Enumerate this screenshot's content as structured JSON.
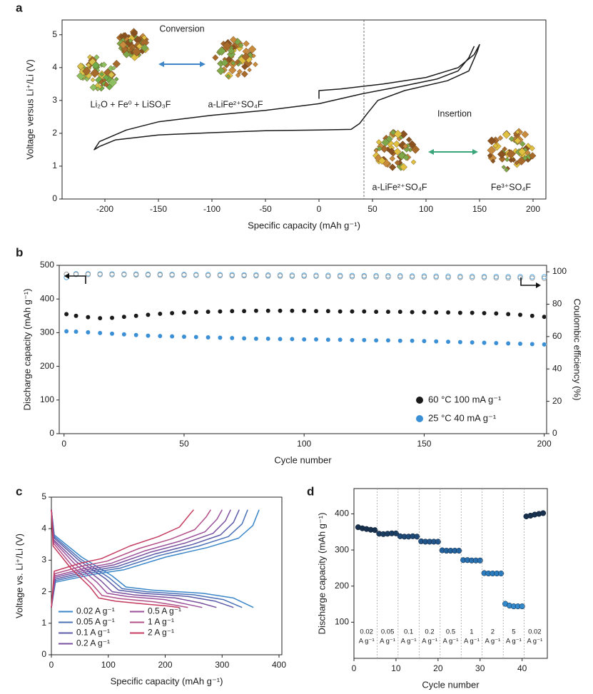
{
  "chart_data": [
    {
      "panel_label": "a",
      "type": "line",
      "xlabel": "Specific capacity (mAh g⁻¹)",
      "ylabel": "Voltage versus Li⁺/Li (V)",
      "xlim": [
        -240,
        212
      ],
      "ylim": [
        0,
        5.45
      ],
      "xticks": [
        -200,
        -150,
        -100,
        -50,
        0,
        50,
        100,
        150,
        200
      ],
      "yticks": [
        0,
        1,
        2,
        3,
        4,
        5
      ],
      "ref_line_x": 42,
      "series": [
        {
          "color": "#1a1a1a",
          "x": [
            0,
            0,
            20,
            60,
            100,
            130,
            145,
            150,
            148,
            140,
            120,
            80,
            55,
            45,
            38,
            30,
            0,
            -50,
            -100,
            -150,
            -190,
            -205,
            -210,
            -205,
            -180,
            -150,
            -100,
            -50,
            0,
            40,
            80,
            110,
            130,
            140,
            145
          ],
          "values": [
            3.05,
            3.3,
            3.35,
            3.5,
            3.7,
            4.0,
            4.4,
            4.7,
            4.5,
            3.9,
            3.6,
            3.3,
            3.0,
            2.6,
            2.3,
            2.12,
            2.1,
            2.08,
            2.02,
            1.95,
            1.8,
            1.6,
            1.5,
            1.75,
            2.1,
            2.35,
            2.55,
            2.7,
            2.9,
            3.2,
            3.45,
            3.65,
            3.9,
            4.3,
            4.65
          ]
        }
      ],
      "annotations": [
        "Conversion",
        "Li₂O + Fe⁰ + LiSO₃F",
        "a-LiFe²⁺SO₄F",
        "Insertion",
        "a-LiFe²⁺SO₄F",
        "Fe³⁺SO₄F"
      ]
    },
    {
      "panel_label": "b",
      "type": "scatter",
      "xlabel": "Cycle number",
      "ylabel": "Discharge capacity (mAh g⁻¹)",
      "y2label": "Coulombic efficiency (%)",
      "xlim": [
        -2,
        201
      ],
      "ylim": [
        0,
        500
      ],
      "y2lim": [
        0,
        104
      ],
      "xticks": [
        0,
        50,
        100,
        150,
        200
      ],
      "yticks": [
        0,
        100,
        200,
        300,
        400,
        500
      ],
      "y2ticks": [
        0,
        20,
        40,
        60,
        80,
        100
      ],
      "legend": "lower right",
      "x": [
        1,
        5,
        10,
        15,
        20,
        25,
        30,
        35,
        40,
        45,
        50,
        55,
        60,
        65,
        70,
        75,
        80,
        85,
        90,
        95,
        100,
        105,
        110,
        115,
        120,
        125,
        130,
        135,
        140,
        145,
        150,
        155,
        160,
        165,
        170,
        175,
        180,
        185,
        190,
        195,
        200
      ],
      "series": [
        {
          "name": "60 °C 100 mA g⁻¹",
          "color": "#1a1a1a",
          "marker": "filled",
          "values": [
            355,
            350,
            346,
            343,
            344,
            347,
            350,
            353,
            356,
            358,
            360,
            361,
            362,
            363,
            364,
            364,
            365,
            365,
            365,
            365,
            365,
            364,
            364,
            363,
            363,
            363,
            362,
            362,
            362,
            361,
            361,
            360,
            360,
            359,
            359,
            358,
            357,
            355,
            353,
            350,
            347
          ]
        },
        {
          "name": "25 °C 40 mA g⁻¹",
          "color": "#3b8fd4",
          "marker": "filled",
          "values": [
            304,
            303,
            301,
            299,
            297,
            295,
            293,
            291,
            290,
            289,
            288,
            287,
            286,
            285,
            284,
            283,
            282,
            282,
            281,
            281,
            280,
            280,
            279,
            279,
            278,
            278,
            277,
            277,
            276,
            276,
            275,
            274,
            273,
            272,
            271,
            270,
            269,
            268,
            267,
            266,
            265
          ]
        },
        {
          "color": "#5aaee8",
          "marker": "open",
          "axis": "y2",
          "values": [
            96.5,
            98.8,
            98.8,
            98.7,
            98.7,
            98.6,
            98.6,
            98.5,
            98.5,
            98.4,
            98.4,
            98.3,
            98.3,
            98.2,
            98.2,
            98.1,
            98.1,
            98.0,
            98.0,
            97.9,
            97.9,
            97.8,
            97.8,
            97.7,
            97.7,
            97.6,
            97.6,
            97.5,
            97.5,
            97.4,
            97.4,
            97.3,
            97.3,
            97.2,
            97.2,
            97.1,
            97.1,
            97.0,
            97.0,
            96.9,
            96.9
          ]
        },
        {
          "color": "#9a9a9a",
          "marker": "open",
          "axis": "y2",
          "values": [
            98.5,
            98.4,
            98.4,
            98.3,
            98.2,
            98.2,
            98.1,
            98.0,
            98.0,
            97.9,
            97.9,
            97.8,
            97.7,
            97.7,
            97.6,
            97.6,
            97.5,
            97.4,
            97.4,
            97.3,
            97.3,
            97.2,
            97.1,
            97.1,
            97.0,
            97.0,
            96.9,
            96.8,
            96.8,
            96.7,
            96.7,
            96.6,
            96.5,
            96.5,
            96.4,
            96.4,
            96.3,
            96.2,
            96.2,
            96.1,
            96.0
          ]
        }
      ]
    },
    {
      "panel_label": "c",
      "type": "line",
      "xlabel": "Specific capacity (mAh g⁻¹)",
      "ylabel": "Voltage vs. Li⁺/Li (V)",
      "xlim": [
        0,
        405
      ],
      "ylim": [
        0,
        5
      ],
      "xticks": [
        0,
        100,
        200,
        300,
        400
      ],
      "yticks": [
        0,
        1,
        2,
        3,
        4,
        5
      ],
      "legend": "lower left",
      "series": [
        {
          "name": "0.02 A g⁻¹",
          "color": "#3a86c8",
          "discharge": {
            "x": [
              0,
              5,
              53,
              107,
              131,
              178,
              266,
              320,
              355
            ],
            "values": [
              4.6,
              3.8,
              3.1,
              2.5,
              2.15,
              2.05,
              1.95,
              1.8,
              1.5
            ]
          },
          "charge": {
            "x": [
              0,
              7,
              73,
              128,
              201,
              274,
              329,
              354,
              365
            ],
            "values": [
              1.5,
              2.3,
              2.55,
              2.7,
              3.1,
              3.4,
              3.7,
              4.1,
              4.6
            ]
          }
        },
        {
          "name": "0.05 A g⁻¹",
          "color": "#4a70b6",
          "discharge": {
            "x": [
              0,
              5,
              50,
              101,
              124,
              168,
              251,
              302,
              335
            ],
            "values": [
              4.6,
              3.75,
              3.05,
              2.45,
              2.1,
              2.0,
              1.9,
              1.75,
              1.5
            ]
          },
          "charge": {
            "x": [
              0,
              7,
              69,
              121,
              190,
              259,
              311,
              335,
              345
            ],
            "values": [
              1.5,
              2.35,
              2.6,
              2.75,
              3.15,
              3.45,
              3.75,
              4.15,
              4.6
            ]
          }
        },
        {
          "name": "0.1 A g⁻¹",
          "color": "#5a5aa8",
          "discharge": {
            "x": [
              0,
              5,
              48,
              96,
              118,
              160,
              240,
              288,
              320
            ],
            "values": [
              4.6,
              3.7,
              3.0,
              2.4,
              2.05,
              1.95,
              1.85,
              1.7,
              1.5
            ]
          },
          "charge": {
            "x": [
              0,
              7,
              66,
              116,
              182,
              248,
              297,
              320,
              330
            ],
            "values": [
              1.5,
              2.4,
              2.65,
              2.8,
              3.2,
              3.5,
              3.8,
              4.2,
              4.6
            ]
          }
        },
        {
          "name": "0.2 A g⁻¹",
          "color": "#7a4f9e",
          "discharge": {
            "x": [
              0,
              4,
              44,
              87,
              107,
              145,
              218,
              261,
              290
            ],
            "values": [
              4.6,
              3.65,
              2.95,
              2.35,
              2.0,
              1.9,
              1.8,
              1.65,
              1.5
            ]
          },
          "charge": {
            "x": [
              0,
              6,
              63,
              110,
              173,
              236,
              284,
              306,
              315
            ],
            "values": [
              1.5,
              2.45,
              2.7,
              2.85,
              3.25,
              3.55,
              3.85,
              4.25,
              4.6
            ]
          }
        },
        {
          "name": "0.5 A g⁻¹",
          "color": "#9a4f9a",
          "discharge": {
            "x": [
              0,
              4,
              40,
              80,
              98,
              133,
              199,
              239,
              265
            ],
            "values": [
              4.6,
              3.6,
              2.9,
              2.3,
              1.95,
              1.85,
              1.75,
              1.6,
              1.5
            ]
          },
          "charge": {
            "x": [
              0,
              6,
              60,
              105,
              165,
              225,
              270,
              291,
              300
            ],
            "values": [
              1.5,
              2.5,
              2.75,
              2.9,
              3.3,
              3.6,
              3.9,
              4.3,
              4.6
            ]
          }
        },
        {
          "name": "1 A g⁻¹",
          "color": "#b2508a",
          "discharge": {
            "x": [
              0,
              4,
              36,
              72,
              89,
              120,
              180,
              216,
              240
            ],
            "values": [
              4.6,
              3.53,
              2.83,
              2.23,
              1.88,
              1.78,
              1.68,
              1.58,
              1.5
            ]
          },
          "charge": {
            "x": [
              0,
              6,
              56,
              98,
              154,
              210,
              252,
              272,
              280
            ],
            "values": [
              1.5,
              2.57,
              2.82,
              2.97,
              3.37,
              3.67,
              3.97,
              4.37,
              4.6
            ]
          }
        },
        {
          "name": "2 A g⁻¹",
          "color": "#c43a5e",
          "discharge": {
            "x": [
              0,
              3,
              34,
              68,
              83,
              113,
              169,
              203,
              225
            ],
            "values": [
              4.6,
              3.45,
              2.75,
              2.15,
              1.8,
              1.7,
              1.6,
              1.55,
              1.5
            ]
          },
          "charge": {
            "x": [
              0,
              5,
              50,
              88,
              138,
              188,
              225,
              243,
              250
            ],
            "values": [
              1.5,
              2.65,
              2.9,
              3.05,
              3.45,
              3.75,
              4.05,
              4.45,
              4.6
            ]
          }
        }
      ]
    },
    {
      "panel_label": "d",
      "type": "scatter",
      "xlabel": "Cycle number",
      "ylabel": "Discharge capacity (mAh g⁻¹)",
      "xlim": [
        0,
        46
      ],
      "ylim": [
        0,
        470
      ],
      "xticks": [
        0,
        10,
        20,
        30,
        40
      ],
      "yticks": [
        100,
        200,
        300,
        400
      ],
      "groups": [
        {
          "label": "0.02",
          "unit": "A g⁻¹",
          "color": "#17304d",
          "x": [
            1,
            2,
            3,
            4,
            5
          ],
          "values": [
            363,
            360,
            358,
            356,
            355
          ]
        },
        {
          "label": "0.05",
          "unit": "A g⁻¹",
          "color": "#1c3d62",
          "x": [
            6,
            7,
            8,
            9,
            10
          ],
          "values": [
            345,
            344,
            345,
            346,
            346
          ]
        },
        {
          "label": "0.1",
          "unit": "A g⁻¹",
          "color": "#1f4a77",
          "x": [
            11,
            12,
            13,
            14,
            15
          ],
          "values": [
            338,
            337,
            337,
            338,
            337
          ]
        },
        {
          "label": "0.2",
          "unit": "A g⁻¹",
          "color": "#22568b",
          "x": [
            16,
            17,
            18,
            19,
            20
          ],
          "values": [
            324,
            323,
            323,
            323,
            323
          ]
        },
        {
          "label": "0.5",
          "unit": "A g⁻¹",
          "color": "#25639f",
          "x": [
            21,
            22,
            23,
            24,
            25
          ],
          "values": [
            299,
            298,
            298,
            298,
            298
          ]
        },
        {
          "label": "1",
          "unit": "A g⁻¹",
          "color": "#2870b0",
          "x": [
            26,
            27,
            28,
            29,
            30
          ],
          "values": [
            272,
            272,
            271,
            271,
            271
          ]
        },
        {
          "label": "2",
          "unit": "A g⁻¹",
          "color": "#2c7dbf",
          "x": [
            31,
            32,
            33,
            34,
            35
          ],
          "values": [
            236,
            235,
            235,
            235,
            235
          ]
        },
        {
          "label": "5",
          "unit": "A g⁻¹",
          "color": "#3289cb",
          "x": [
            36,
            37,
            38,
            39,
            40
          ],
          "values": [
            151,
            146,
            144,
            144,
            144
          ]
        },
        {
          "label": "0.02",
          "unit": "A g⁻¹",
          "color": "#17304d",
          "x": [
            41,
            42,
            43,
            44,
            45
          ],
          "values": [
            393,
            395,
            398,
            400,
            402
          ]
        }
      ]
    }
  ]
}
